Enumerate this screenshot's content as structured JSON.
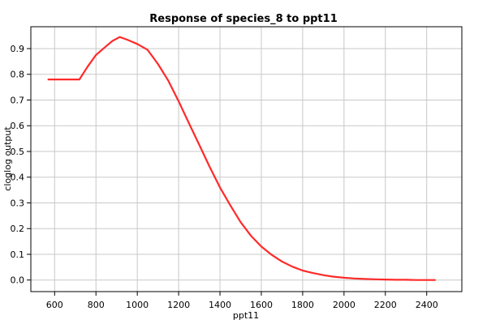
{
  "chart_data": {
    "type": "line",
    "title": "Response of species_8 to ppt11",
    "xlabel": "ppt11",
    "ylabel": "cloglog output",
    "xlim": [
      485,
      2570
    ],
    "ylim": [
      -0.045,
      0.985
    ],
    "x_ticks": [
      600,
      800,
      1000,
      1200,
      1400,
      1600,
      1800,
      2000,
      2200,
      2400
    ],
    "y_ticks": [
      0.0,
      0.1,
      0.2,
      0.3,
      0.4,
      0.5,
      0.6,
      0.7,
      0.8,
      0.9
    ],
    "x_tick_labels": [
      "600",
      "800",
      "1000",
      "1200",
      "1400",
      "1600",
      "1800",
      "2000",
      "2200",
      "2400"
    ],
    "y_tick_labels": [
      "0.0",
      "0.1",
      "0.2",
      "0.3",
      "0.4",
      "0.5",
      "0.6",
      "0.7",
      "0.8",
      "0.9"
    ],
    "grid": true,
    "series": [
      {
        "color": "#ff2a2a",
        "x": [
          570,
          720,
          760,
          800,
          850,
          880,
          915,
          950,
          1000,
          1050,
          1100,
          1150,
          1200,
          1250,
          1300,
          1350,
          1400,
          1450,
          1500,
          1550,
          1600,
          1650,
          1700,
          1750,
          1800,
          1850,
          1900,
          1950,
          2000,
          2050,
          2100,
          2150,
          2200,
          2250,
          2300,
          2350,
          2400,
          2440
        ],
        "y": [
          0.78,
          0.78,
          0.83,
          0.875,
          0.91,
          0.93,
          0.945,
          0.935,
          0.918,
          0.895,
          0.84,
          0.775,
          0.695,
          0.61,
          0.525,
          0.44,
          0.36,
          0.29,
          0.225,
          0.172,
          0.13,
          0.098,
          0.072,
          0.052,
          0.037,
          0.027,
          0.019,
          0.013,
          0.009,
          0.006,
          0.004,
          0.003,
          0.002,
          0.001,
          0.001,
          0.0,
          0.0,
          0.0
        ]
      }
    ]
  }
}
